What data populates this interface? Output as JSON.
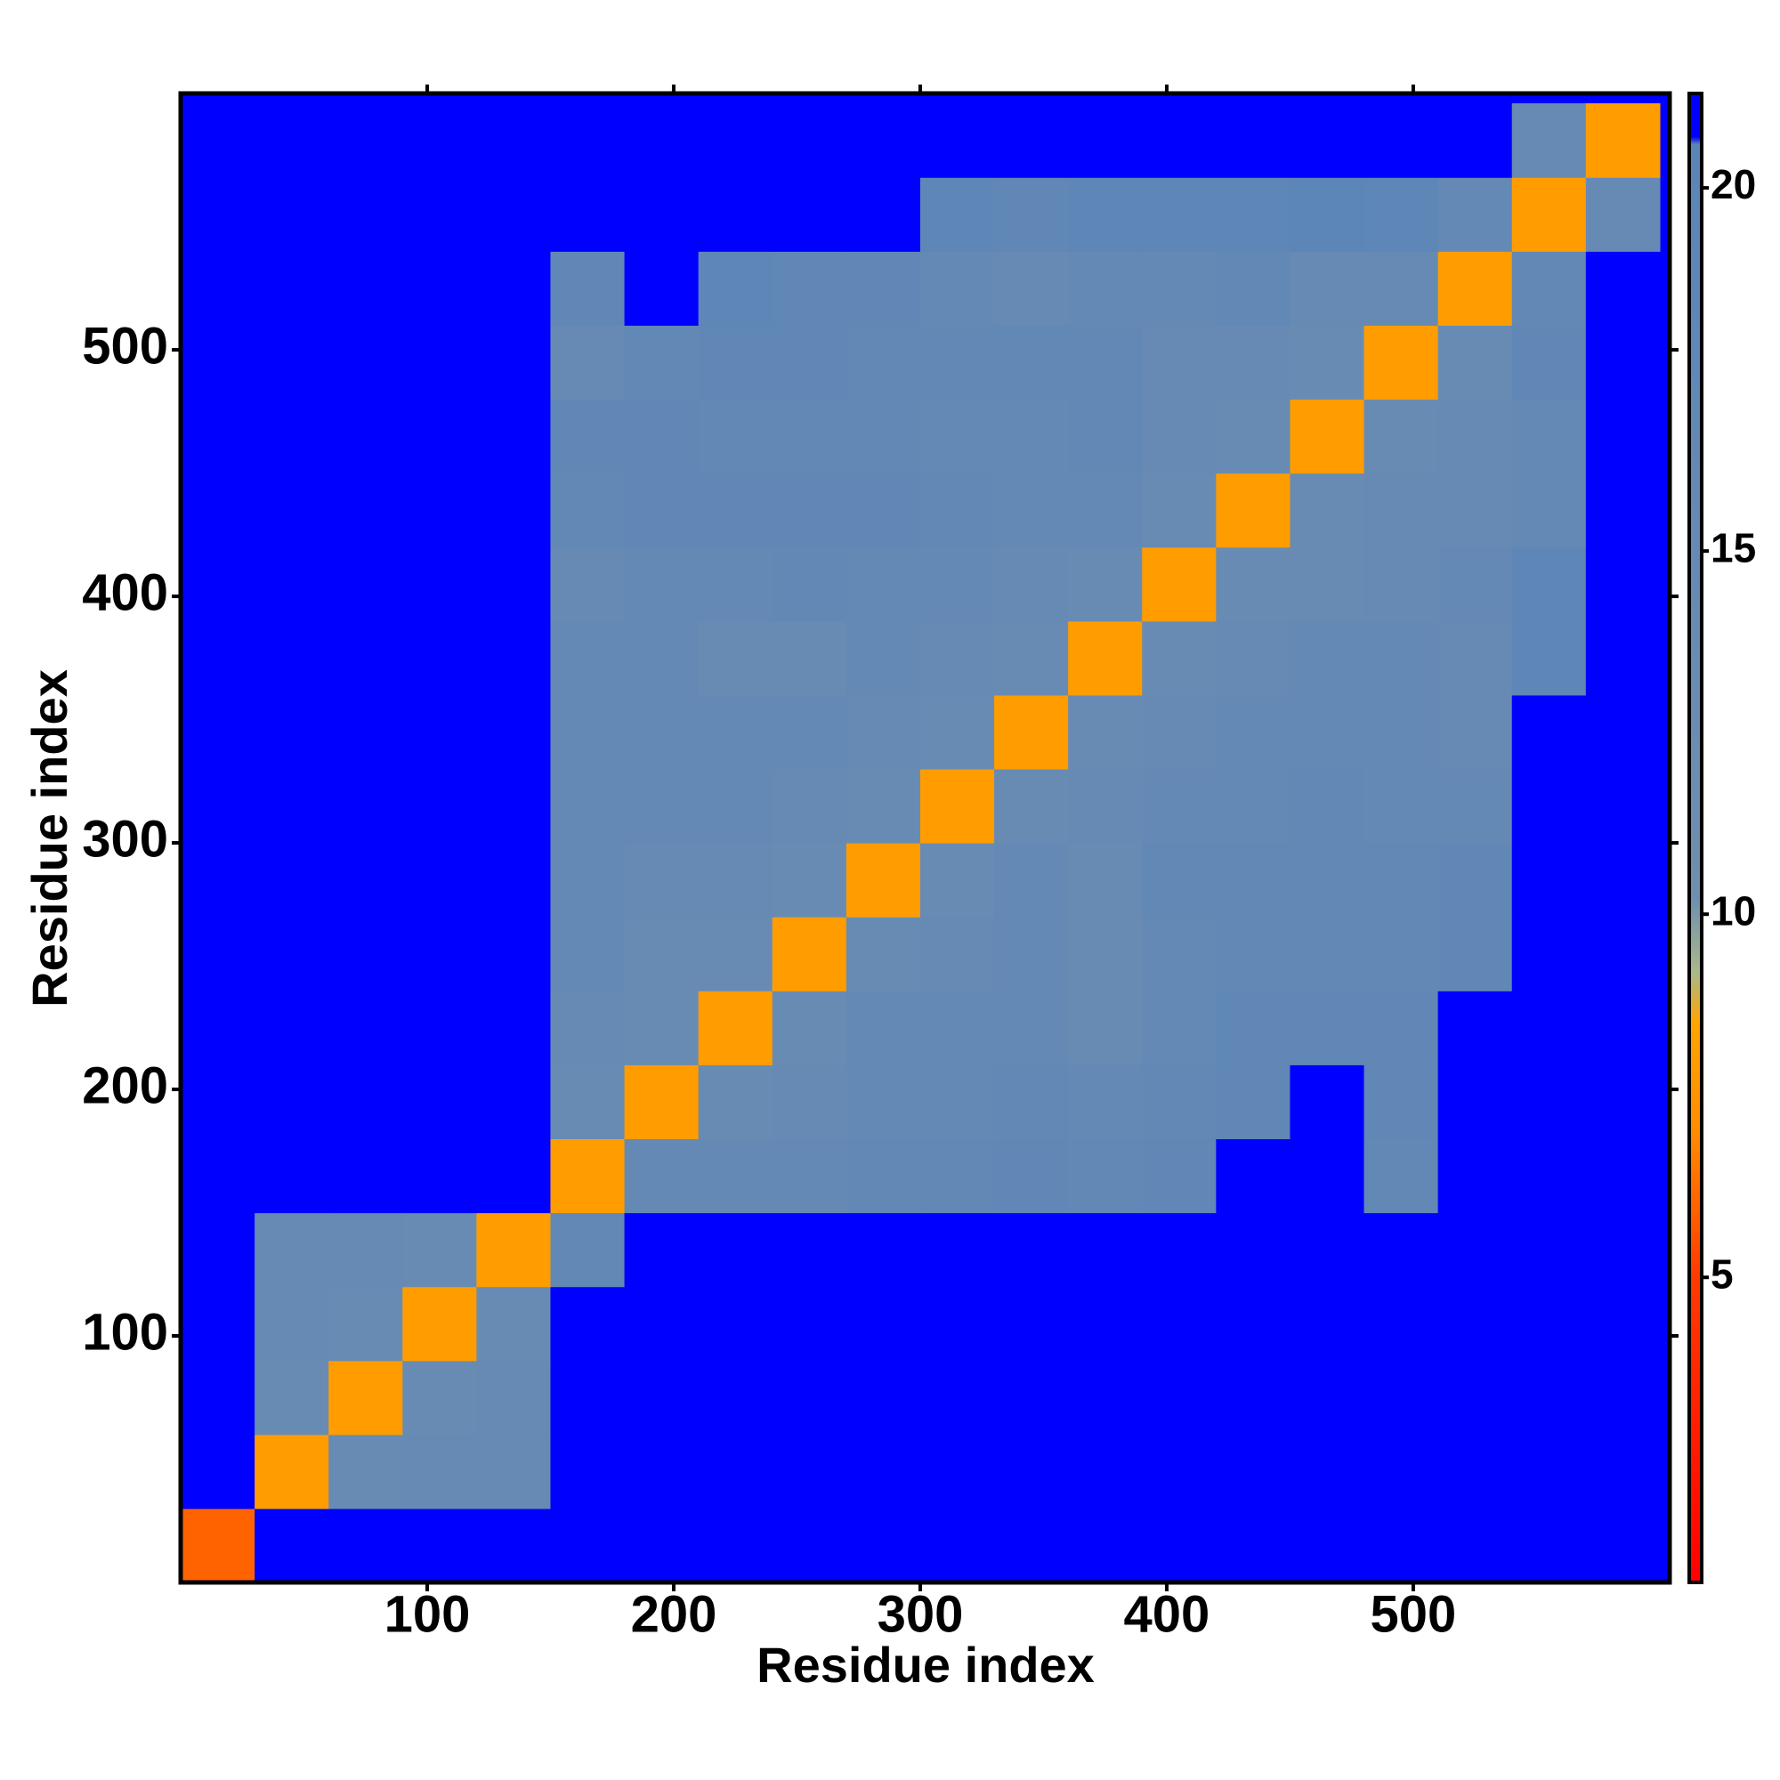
{
  "chart_data": {
    "type": "heatmap",
    "x_label": "Residue index",
    "y_label": "Residue index",
    "xlim": [
      0,
      604
    ],
    "ylim": [
      0,
      604
    ],
    "xticks": [
      100,
      200,
      300,
      400,
      500
    ],
    "yticks": [
      100,
      200,
      300,
      400,
      500
    ],
    "xbins": [
      0,
      30,
      60,
      90,
      120,
      150,
      180,
      210,
      240,
      270,
      300,
      330,
      360,
      390,
      420,
      450,
      480,
      510,
      540,
      570,
      600
    ],
    "ybins": [
      0,
      30,
      60,
      90,
      120,
      150,
      180,
      210,
      240,
      270,
      300,
      330,
      360,
      390,
      420,
      450,
      480,
      510,
      540,
      570,
      600
    ],
    "z": [
      [
        6,
        21,
        21,
        21,
        21,
        21,
        21,
        21,
        21,
        21,
        21,
        21,
        21,
        21,
        21,
        21,
        21,
        21,
        21,
        21
      ],
      [
        21,
        8,
        14,
        15,
        15,
        21,
        21,
        21,
        21,
        21,
        21,
        21,
        21,
        21,
        21,
        21,
        21,
        21,
        21,
        21
      ],
      [
        21,
        14,
        8,
        14,
        15,
        21,
        21,
        21,
        21,
        21,
        21,
        21,
        21,
        21,
        21,
        21,
        21,
        21,
        21,
        21
      ],
      [
        21,
        15,
        14,
        8,
        14,
        21,
        21,
        21,
        21,
        21,
        21,
        21,
        21,
        21,
        21,
        21,
        21,
        21,
        21,
        21
      ],
      [
        21,
        15,
        15,
        14,
        8,
        17,
        21,
        21,
        21,
        21,
        21,
        21,
        21,
        21,
        21,
        21,
        21,
        21,
        21,
        21
      ],
      [
        21,
        21,
        21,
        21,
        21,
        8,
        16,
        16,
        16,
        17,
        17,
        18,
        17,
        18,
        21,
        21,
        17,
        21,
        21,
        21
      ],
      [
        21,
        21,
        21,
        21,
        21,
        14,
        8,
        14,
        15,
        16,
        16,
        17,
        16,
        17,
        18,
        21,
        18,
        21,
        21,
        21
      ],
      [
        21,
        21,
        21,
        21,
        21,
        15,
        14,
        8,
        14,
        16,
        16,
        16,
        14,
        16,
        18,
        18,
        18,
        21,
        21,
        21
      ],
      [
        21,
        21,
        21,
        21,
        21,
        16,
        14,
        14,
        8,
        14,
        15,
        16,
        14,
        16,
        17,
        17,
        17,
        18,
        21,
        21
      ],
      [
        21,
        21,
        21,
        21,
        21,
        16,
        15,
        15,
        14,
        8,
        14,
        16,
        14,
        17,
        17,
        17,
        17,
        18,
        21,
        21
      ],
      [
        21,
        21,
        21,
        21,
        21,
        16,
        16,
        16,
        15,
        14,
        8,
        14,
        15,
        16,
        16,
        17,
        16,
        16,
        21,
        21
      ],
      [
        21,
        21,
        21,
        21,
        21,
        16,
        16,
        16,
        16,
        15,
        14,
        8,
        14,
        15,
        16,
        16,
        16,
        15,
        21,
        21
      ],
      [
        21,
        21,
        21,
        21,
        21,
        16,
        16,
        14,
        14,
        16,
        15,
        14,
        8,
        14,
        15,
        16,
        16,
        15,
        19,
        21
      ],
      [
        21,
        21,
        21,
        21,
        21,
        15,
        16,
        16,
        17,
        16,
        16,
        15,
        14,
        8,
        14,
        14,
        15,
        16,
        19,
        21
      ],
      [
        21,
        21,
        21,
        21,
        21,
        17,
        18,
        18,
        18,
        18,
        17,
        16,
        16,
        14,
        8,
        14,
        15,
        15,
        16,
        21
      ],
      [
        21,
        21,
        21,
        21,
        21,
        18,
        18,
        17,
        17,
        17,
        16,
        16,
        17,
        15,
        14,
        8,
        14,
        15,
        16,
        21
      ],
      [
        21,
        21,
        21,
        21,
        21,
        15,
        17,
        18,
        18,
        17,
        17,
        17,
        17,
        15,
        15,
        14,
        8,
        14,
        18,
        21
      ],
      [
        21,
        21,
        21,
        21,
        21,
        18,
        21,
        19,
        18,
        18,
        16,
        15,
        16,
        16,
        17,
        15,
        15,
        8,
        17,
        21
      ],
      [
        21,
        21,
        21,
        21,
        21,
        21,
        21,
        21,
        21,
        21,
        19,
        18,
        19,
        19,
        19,
        20,
        19,
        16,
        8,
        15
      ],
      [
        21,
        21,
        21,
        21,
        21,
        21,
        21,
        21,
        21,
        21,
        21,
        21,
        21,
        21,
        21,
        21,
        21,
        21,
        15,
        8
      ]
    ],
    "colorbar": {
      "lim": [
        0.8,
        21.3
      ],
      "ticks": [
        5,
        10,
        15,
        20
      ]
    },
    "colorscale": [
      [
        0.8,
        "#ff0000"
      ],
      [
        5,
        "#ff3a00"
      ],
      [
        7,
        "#ff8c00"
      ],
      [
        8.5,
        "#ffa500"
      ],
      [
        9.2,
        "#a9b98a"
      ],
      [
        10.2,
        "#6f8fb0"
      ],
      [
        20.6,
        "#5b84b8"
      ],
      [
        20.7,
        "#0000ff"
      ],
      [
        21.3,
        "#0000ff"
      ]
    ]
  }
}
